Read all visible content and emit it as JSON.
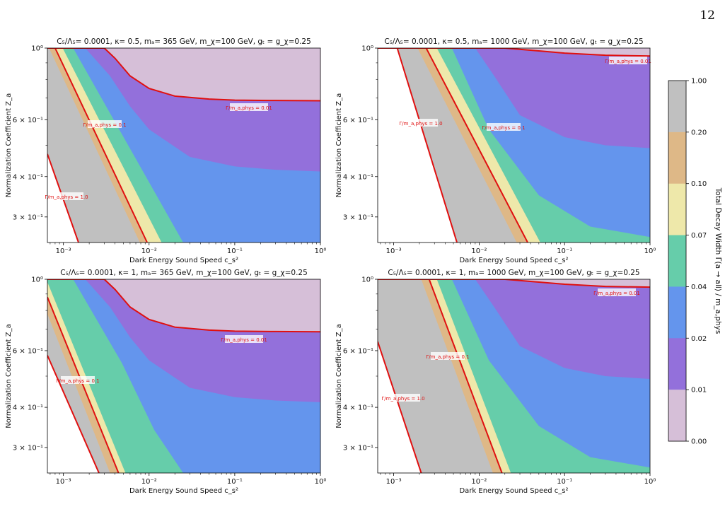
{
  "page_number": "12",
  "colors": {
    "bands": [
      "#d6bfd8",
      "#9370db",
      "#6495ed",
      "#66cdaa",
      "#eee8aa",
      "#deb887",
      "#c0c0c0"
    ],
    "contour": "#e01010"
  },
  "chart_data": [
    {
      "type": "contourf",
      "title": "C₅/Λ₅= 0.0001, κ= 0.5, mₐ= 365 GeV, m_χ=100 GeV, gₜ = g_χ=0.25",
      "xlabel": "Dark Energy Sound Speed c_s²",
      "ylabel": "Normalization Coefficient Z_a",
      "xscale": "log",
      "yscale": "log",
      "xlim": [
        0.00065,
        1
      ],
      "ylim": [
        0.25,
        1
      ],
      "x_ticks": [
        "10⁻³",
        "10⁻²",
        "10⁻¹",
        "10⁰"
      ],
      "y_ticks": [
        "3 × 10⁻¹",
        "4 × 10⁻¹",
        "6 × 10⁻¹",
        "10⁰"
      ],
      "contour_labels": [
        {
          "level": 1.0,
          "text": "Γ/m_a,phys = 1.0"
        },
        {
          "level": 0.1,
          "text": "Γ/m_a,phys = 0.1"
        },
        {
          "level": 0.01,
          "text": "Γ/m_a,phys = 0.01"
        }
      ],
      "boundaries": [
        {
          "level": 0.01,
          "x": [
            0.00065,
            0.003,
            0.004,
            0.006,
            0.01,
            0.02,
            0.05,
            0.1,
            0.3,
            1
          ],
          "y": [
            1.0,
            1.0,
            0.93,
            0.82,
            0.75,
            0.71,
            0.695,
            0.69,
            0.688,
            0.687
          ]
        },
        {
          "level": 0.02,
          "x": [
            0.00065,
            0.0018,
            0.0035,
            0.006,
            0.01,
            0.03,
            0.1,
            0.3,
            1
          ],
          "y": [
            1.0,
            1.0,
            0.82,
            0.66,
            0.56,
            0.46,
            0.43,
            0.42,
            0.415
          ]
        },
        {
          "level": 0.04,
          "x": [
            0.00065,
            0.0013,
            0.025
          ],
          "y": [
            1.0,
            1.0,
            0.25
          ]
        },
        {
          "level": 0.07,
          "x": [
            0.00065,
            0.00098,
            0.014
          ],
          "y": [
            1.0,
            1.0,
            0.25
          ]
        },
        {
          "level": 0.1,
          "x": [
            0.00065,
            0.0008,
            0.0095
          ],
          "y": [
            1.0,
            1.0,
            0.25
          ]
        },
        {
          "level": 0.2,
          "x": [
            0.00065,
            0.00068,
            0.0078
          ],
          "y": [
            1.0,
            1.0,
            0.25
          ]
        },
        {
          "level": 1.0,
          "x": [
            0.00065,
            0.0015
          ],
          "y": [
            0.47,
            0.25
          ]
        }
      ]
    },
    {
      "type": "contourf",
      "title": "C₅/Λ₅= 0.0001, κ= 0.5, mₐ= 1000 GeV, m_χ=100 GeV, gₜ = g_χ=0.25",
      "xlabel": "Dark Energy Sound Speed c_s²",
      "ylabel": "Normalization Coefficient Z_a",
      "xscale": "log",
      "yscale": "log",
      "xlim": [
        0.00065,
        1
      ],
      "ylim": [
        0.25,
        1
      ],
      "x_ticks": [
        "10⁻³",
        "10⁻²",
        "10⁻¹",
        "10⁰"
      ],
      "y_ticks": [
        "3 × 10⁻¹",
        "4 × 10⁻¹",
        "6 × 10⁻¹",
        "10⁰"
      ],
      "contour_labels": [
        {
          "level": 1.0,
          "text": "Γ/m_a,phys = 1.0"
        },
        {
          "level": 0.1,
          "text": "Γ/m_a,phys = 0.1"
        },
        {
          "level": 0.01,
          "text": "Γ/m_a,phys = 0.01"
        }
      ],
      "boundaries": [
        {
          "level": 0.01,
          "x": [
            0.00065,
            0.02,
            0.05,
            0.1,
            0.3,
            1
          ],
          "y": [
            1.0,
            1.0,
            0.98,
            0.965,
            0.95,
            0.945
          ]
        },
        {
          "level": 0.02,
          "x": [
            0.00065,
            0.009,
            0.015,
            0.03,
            0.1,
            0.3,
            1
          ],
          "y": [
            1.0,
            1.0,
            0.82,
            0.62,
            0.53,
            0.5,
            0.49
          ]
        },
        {
          "level": 0.04,
          "x": [
            0.00065,
            0.0048,
            0.013,
            0.05,
            0.2,
            1
          ],
          "y": [
            1.0,
            1.0,
            0.56,
            0.35,
            0.28,
            0.26
          ]
        },
        {
          "level": 0.07,
          "x": [
            0.00065,
            0.0032,
            0.052
          ],
          "y": [
            1.0,
            1.0,
            0.25
          ]
        },
        {
          "level": 0.1,
          "x": [
            0.00065,
            0.0024,
            0.037
          ],
          "y": [
            1.0,
            1.0,
            0.25
          ]
        },
        {
          "level": 0.2,
          "x": [
            0.00065,
            0.0019,
            0.0275
          ],
          "y": [
            1.0,
            1.0,
            0.25
          ]
        },
        {
          "level": 1.0,
          "x": [
            0.00065,
            0.0011,
            0.0055
          ],
          "y": [
            1.0,
            1.0,
            0.25
          ]
        }
      ]
    },
    {
      "type": "contourf",
      "title": "C₅/Λ₅= 0.0001, κ= 1, mₐ= 365 GeV, m_χ=100 GeV, gₜ = g_χ=0.25",
      "xlabel": "Dark Energy Sound Speed c_s²",
      "ylabel": "Normalization Coefficient Z_a",
      "xscale": "log",
      "yscale": "log",
      "xlim": [
        0.00065,
        1
      ],
      "ylim": [
        0.25,
        1
      ],
      "x_ticks": [
        "10⁻³",
        "10⁻²",
        "10⁻¹",
        "10⁰"
      ],
      "y_ticks": [
        "3 × 10⁻¹",
        "4 × 10⁻¹",
        "6 × 10⁻¹",
        "10⁰"
      ],
      "contour_labels": [
        {
          "level": 0.1,
          "text": "Γ/m_a,phys = 0.1"
        },
        {
          "level": 0.01,
          "text": "Γ/m_a,phys = 0.01"
        }
      ],
      "boundaries": [
        {
          "level": 0.01,
          "x": [
            0.00065,
            0.003,
            0.004,
            0.006,
            0.01,
            0.02,
            0.05,
            0.1,
            0.3,
            1
          ],
          "y": [
            1.0,
            1.0,
            0.93,
            0.82,
            0.75,
            0.71,
            0.695,
            0.69,
            0.688,
            0.687
          ]
        },
        {
          "level": 0.02,
          "x": [
            0.00065,
            0.0018,
            0.0035,
            0.006,
            0.01,
            0.03,
            0.1,
            0.3,
            1
          ],
          "y": [
            1.0,
            1.0,
            0.82,
            0.66,
            0.56,
            0.46,
            0.43,
            0.42,
            0.415
          ]
        },
        {
          "level": 0.04,
          "x": [
            0.00065,
            0.0013,
            0.0048,
            0.0115,
            0.025
          ],
          "y": [
            1.0,
            1.0,
            0.55,
            0.34,
            0.25
          ]
        },
        {
          "level": 0.07,
          "x": [
            0.00065,
            0.0053
          ],
          "y": [
            0.98,
            0.25
          ]
        },
        {
          "level": 0.1,
          "x": [
            0.00065,
            0.0044
          ],
          "y": [
            0.88,
            0.25
          ]
        },
        {
          "level": 0.2,
          "x": [
            0.00065,
            0.0035
          ],
          "y": [
            0.78,
            0.25
          ]
        },
        {
          "level": 1.0,
          "x": [
            0.00065,
            0.0026
          ],
          "y": [
            0.58,
            0.25
          ]
        }
      ]
    },
    {
      "type": "contourf",
      "title": "C₅/Λ₅= 0.0001, κ= 1, mₐ= 1000 GeV, m_χ=100 GeV, gₜ = g_χ=0.25",
      "xlabel": "Dark Energy Sound Speed c_s²",
      "ylabel": "Normalization Coefficient Z_a",
      "xscale": "log",
      "yscale": "log",
      "xlim": [
        0.00065,
        1
      ],
      "ylim": [
        0.25,
        1
      ],
      "x_ticks": [
        "10⁻³",
        "10⁻²",
        "10⁻¹",
        "10⁰"
      ],
      "y_ticks": [
        "3 × 10⁻¹",
        "4 × 10⁻¹",
        "6 × 10⁻¹",
        "10⁰"
      ],
      "contour_labels": [
        {
          "level": 1.0,
          "text": "Γ/m_a,phys = 1.0"
        },
        {
          "level": 0.1,
          "text": "Γ/m_a,phys = 0.1"
        },
        {
          "level": 0.01,
          "text": "Γ/m_a,phys = 0.01"
        }
      ],
      "boundaries": [
        {
          "level": 0.01,
          "x": [
            0.00065,
            0.02,
            0.05,
            0.1,
            0.3,
            1
          ],
          "y": [
            1.0,
            1.0,
            0.98,
            0.965,
            0.95,
            0.945
          ]
        },
        {
          "level": 0.02,
          "x": [
            0.00065,
            0.009,
            0.015,
            0.03,
            0.1,
            0.3,
            1
          ],
          "y": [
            1.0,
            1.0,
            0.82,
            0.62,
            0.53,
            0.5,
            0.49
          ]
        },
        {
          "level": 0.04,
          "x": [
            0.00065,
            0.0048,
            0.013,
            0.05,
            0.2,
            1
          ],
          "y": [
            1.0,
            1.0,
            0.56,
            0.35,
            0.28,
            0.26
          ]
        },
        {
          "level": 0.07,
          "x": [
            0.00065,
            0.0032,
            0.0235
          ],
          "y": [
            1.0,
            1.0,
            0.25
          ]
        },
        {
          "level": 0.1,
          "x": [
            0.00065,
            0.0026,
            0.0185
          ],
          "y": [
            1.0,
            1.0,
            0.25
          ]
        },
        {
          "level": 0.2,
          "x": [
            0.00065,
            0.0021,
            0.0145
          ],
          "y": [
            1.0,
            1.0,
            0.25
          ]
        },
        {
          "level": 1.0,
          "x": [
            0.00065,
            0.0021
          ],
          "y": [
            0.64,
            0.25
          ]
        }
      ]
    }
  ],
  "colorbar": {
    "label": "Total Decay Width Γ(a → all) / m_a,phys",
    "ticks": [
      "1.00",
      "0.20",
      "0.10",
      "0.07",
      "0.04",
      "0.02",
      "0.01",
      "0.00"
    ]
  }
}
